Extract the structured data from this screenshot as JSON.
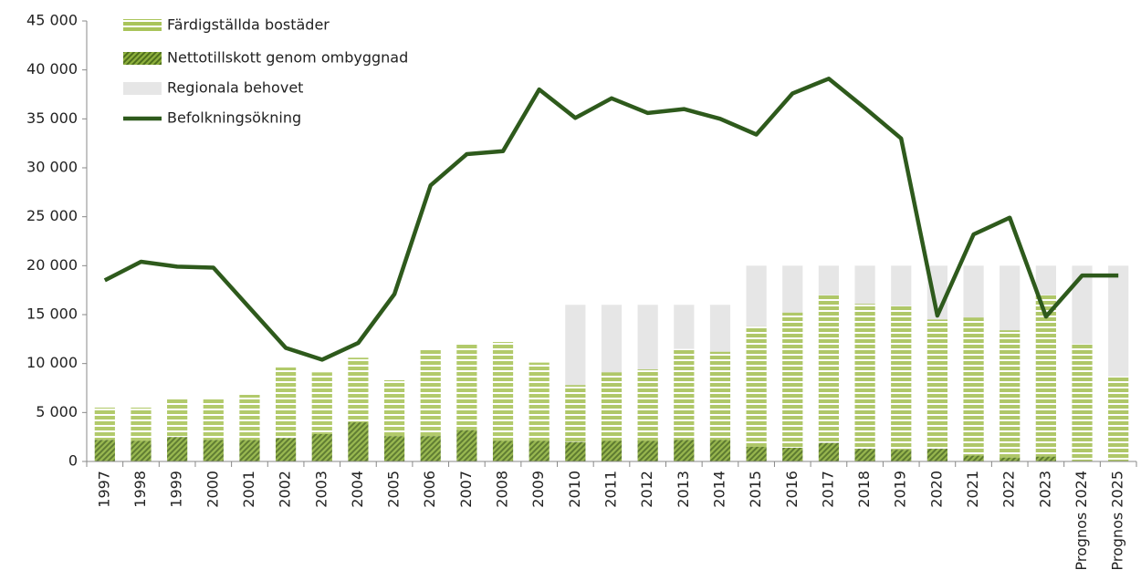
{
  "chart_data": {
    "type": "bar",
    "categories": [
      "1997",
      "1998",
      "1999",
      "2000",
      "2001",
      "2002",
      "2003",
      "2004",
      "2005",
      "2006",
      "2007",
      "2008",
      "2009",
      "2010",
      "2011",
      "2012",
      "2013",
      "2014",
      "2015",
      "2016",
      "2017",
      "2018",
      "2019",
      "2020",
      "2021",
      "2022",
      "2023",
      "Prognos 2024",
      "Prognos 2025"
    ],
    "series": [
      {
        "name": "Färdigställda bostäder",
        "type": "bar",
        "color": "#a9c45a",
        "values": [
          3300,
          3400,
          4000,
          4300,
          4600,
          7200,
          6300,
          6600,
          5700,
          8800,
          8800,
          10100,
          8000,
          5800,
          7000,
          7300,
          9300,
          9000,
          12300,
          13800,
          15100,
          14800,
          14700,
          13200,
          14100,
          13000,
          16500,
          12000,
          8700
        ]
      },
      {
        "name": "Nettotillskott genom ombyggnad",
        "type": "bar",
        "color": "#4e6e1c",
        "values": [
          2200,
          2100,
          2500,
          2200,
          2200,
          2400,
          2800,
          4000,
          2600,
          2600,
          3200,
          2100,
          2100,
          2000,
          2100,
          2100,
          2200,
          2200,
          1500,
          1400,
          1900,
          1300,
          1200,
          1300,
          600,
          400,
          500,
          0,
          0
        ]
      },
      {
        "name": "Regionala behovet",
        "type": "background",
        "color": "#e6e6e6",
        "values": [
          null,
          null,
          null,
          null,
          null,
          null,
          null,
          null,
          null,
          null,
          null,
          null,
          null,
          16000,
          16000,
          16000,
          16000,
          16000,
          20000,
          20000,
          20000,
          20000,
          20000,
          20000,
          20000,
          20000,
          20000,
          20000,
          20000
        ]
      },
      {
        "name": "Befolkningsökning",
        "type": "line",
        "color": "#2e5a1c",
        "values": [
          18500,
          20400,
          19900,
          19800,
          15700,
          11600,
          10400,
          12100,
          17100,
          28200,
          31400,
          31700,
          38000,
          35100,
          37100,
          35600,
          36000,
          35000,
          33400,
          37600,
          39100,
          36100,
          33000,
          14900,
          23200,
          24900,
          14800,
          19000,
          19000
        ]
      }
    ],
    "ylim": [
      0,
      45000
    ],
    "yticks": [
      0,
      {
        "value": 5000,
        "label": "5 000"
      },
      {
        "value": 10000,
        "label": "10 000"
      },
      {
        "value": 15000,
        "label": "15 000"
      },
      {
        "value": 20000,
        "label": "20 000"
      },
      {
        "value": 25000,
        "label": "25 000"
      },
      {
        "value": 30000,
        "label": "30 000"
      },
      {
        "value": 35000,
        "label": "35 000"
      },
      {
        "value": 40000,
        "label": "40 000"
      },
      {
        "value": 45000,
        "label": "45 000"
      }
    ],
    "legend": "top-left"
  }
}
